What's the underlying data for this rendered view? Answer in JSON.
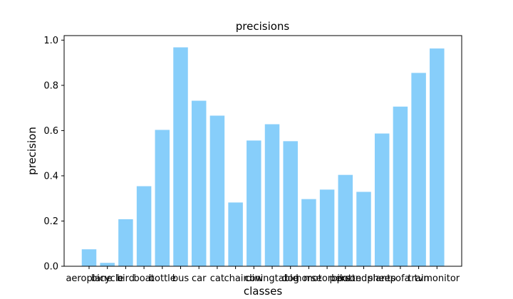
{
  "chart_data": {
    "type": "bar",
    "title": "precisions",
    "xlabel": "classes",
    "ylabel": "precision",
    "ylim": [
      0,
      1.02
    ],
    "yticks": [
      "0.0",
      "0.2",
      "0.4",
      "0.6",
      "0.8",
      "1.0"
    ],
    "grid": false,
    "bar_color": "#87cefa",
    "categories": [
      "aeroplane",
      "bicycle",
      "bird",
      "boat",
      "bottle",
      "bus",
      "car",
      "cat",
      "chair",
      "cow",
      "diningtable",
      "dog",
      "horse",
      "motorbike",
      "person",
      "pottedplant",
      "sheep",
      "sofa",
      "train",
      "tvmonitor"
    ],
    "values": [
      0.075,
      0.015,
      0.208,
      0.354,
      0.603,
      0.968,
      0.732,
      0.666,
      0.282,
      0.556,
      0.628,
      0.553,
      0.297,
      0.339,
      0.404,
      0.329,
      0.587,
      0.706,
      0.855,
      0.963
    ]
  }
}
